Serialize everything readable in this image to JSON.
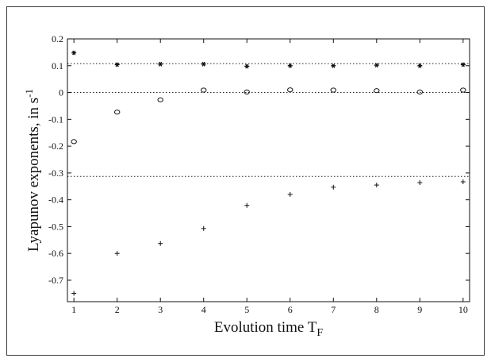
{
  "chart_data": {
    "type": "scatter",
    "xlabel": "Evolution time T",
    "xlabel_subscript": "F",
    "ylabel": "Lyapunov exponents, in s",
    "ylabel_superscript": "-1",
    "xlim": [
      1,
      10
    ],
    "ylim": [
      -0.78,
      0.2
    ],
    "x_ticks": [
      1,
      2,
      3,
      4,
      5,
      6,
      7,
      8,
      9,
      10
    ],
    "y_ticks": [
      0.2,
      0.1,
      0,
      -0.1,
      -0.2,
      -0.3,
      -0.4,
      -0.5,
      -0.6,
      -0.7
    ],
    "y_tick_labels": [
      "0.2",
      "0.1",
      "0",
      "-0.1",
      "-0.2",
      "-0.3",
      "-0.4",
      "-0.5",
      "-0.6",
      "-0.7"
    ],
    "reference_lines": [
      0.108,
      0.0,
      -0.313
    ],
    "grid": false,
    "series": [
      {
        "marker": "asterisk",
        "x": [
          1,
          2,
          3,
          4,
          5,
          6,
          7,
          8,
          9,
          10
        ],
        "values": [
          0.148,
          0.104,
          0.106,
          0.106,
          0.098,
          0.1,
          0.1,
          0.102,
          0.1,
          0.104
        ]
      },
      {
        "marker": "circle",
        "x": [
          1,
          2,
          3,
          4,
          5,
          6,
          7,
          8,
          9,
          10
        ],
        "values": [
          -0.183,
          -0.073,
          -0.027,
          0.009,
          0.002,
          0.01,
          0.009,
          0.007,
          0.002,
          0.009
        ]
      },
      {
        "marker": "plus",
        "x": [
          1,
          2,
          3,
          4,
          5,
          6,
          7,
          8,
          9,
          10
        ],
        "values": [
          -0.749,
          -0.6,
          -0.563,
          -0.507,
          -0.421,
          -0.38,
          -0.353,
          -0.345,
          -0.336,
          -0.333
        ]
      }
    ]
  }
}
